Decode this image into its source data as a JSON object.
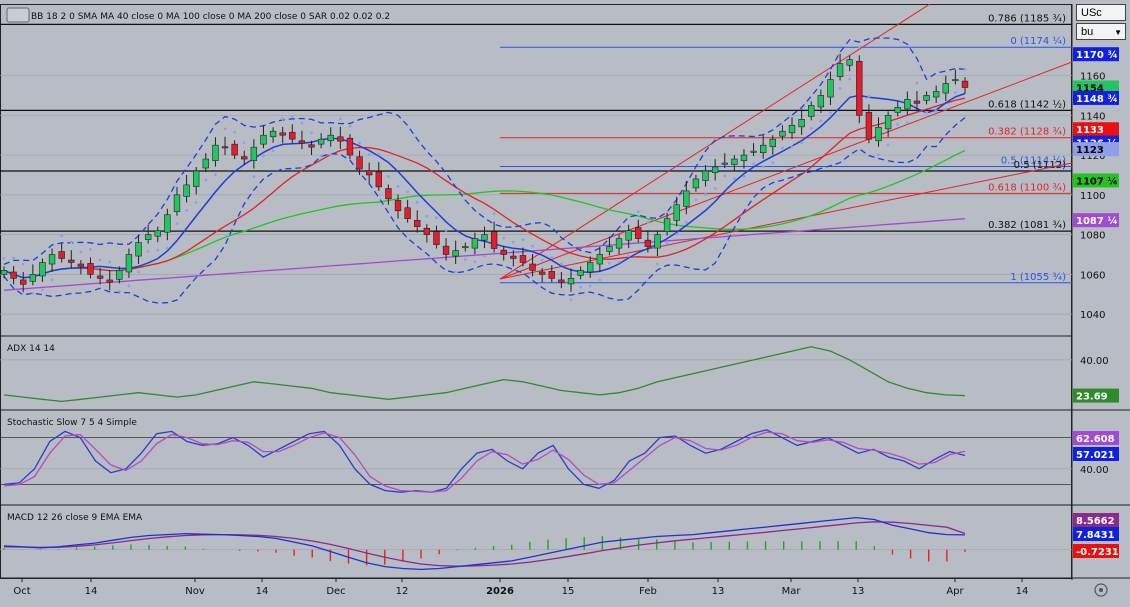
{
  "toolbar": {
    "indicators_label": "BB 18 2 0 SMA  MA 40 close 0  MA 100 close 0  MA 200 close 0  SAR 0.02 0.02 0.2",
    "symbol_value": "USc",
    "style_value": "bu"
  },
  "colors": {
    "background": "#b8bcc4",
    "up_candle": "#22c55e",
    "down_candle": "#e11d2f",
    "bollinger": "#1d3fd8",
    "sar_dots": "#8f9ee8",
    "ma40": "#e02424",
    "ma100": "#22c51e",
    "ma200": "#a14bd0",
    "adx": "#2e8b2e",
    "stoch_k": "#2b3fc4",
    "stoch_d": "#b24cc0",
    "macd_line": "#2230d0",
    "macd_signal": "#8a2a8a",
    "hist_pos": "#1fa81f",
    "hist_neg": "#e82020"
  },
  "chart_data": [
    {
      "type": "candlestick",
      "title": "",
      "x_labels": [
        "Oct",
        "14",
        "Nov",
        "14",
        "Dec",
        "12",
        "2026",
        "15",
        "Feb",
        "13",
        "Mar",
        "13",
        "Apr",
        "14"
      ],
      "y_ticks": [
        1040,
        1060,
        1080,
        1100,
        1120,
        1140,
        1160
      ],
      "ylim": [
        1030,
        1196
      ],
      "close_approx": [
        1062,
        1058,
        1055,
        1060,
        1066,
        1070,
        1068,
        1066,
        1064,
        1060,
        1058,
        1056,
        1062,
        1070,
        1076,
        1080,
        1082,
        1090,
        1100,
        1105,
        1112,
        1118,
        1125,
        1124,
        1120,
        1118,
        1124,
        1130,
        1132,
        1130,
        1128,
        1126,
        1124,
        1128,
        1130,
        1127,
        1120,
        1113,
        1110,
        1104,
        1098,
        1092,
        1088,
        1084,
        1080,
        1075,
        1070,
        1072,
        1074,
        1078,
        1080,
        1073,
        1070,
        1068,
        1066,
        1062,
        1060,
        1058,
        1056,
        1058,
        1062,
        1066,
        1070,
        1074,
        1078,
        1082,
        1078,
        1074,
        1080,
        1088,
        1095,
        1102,
        1108,
        1112,
        1114,
        1116,
        1118,
        1120,
        1122,
        1125,
        1128,
        1132,
        1135,
        1138,
        1145,
        1150,
        1158,
        1166,
        1168,
        1140,
        1128,
        1134,
        1140,
        1144,
        1148,
        1146,
        1150,
        1152,
        1156,
        1158,
        1154
      ],
      "fib_levels": [
        {
          "label": "0.786 (1185 ¾)",
          "value": 1185.75,
          "color": "#111111"
        },
        {
          "label": "0 (1174 ¼)",
          "value": 1174.25,
          "color": "#2b55e8"
        },
        {
          "label": "0.618 (1142 ½)",
          "value": 1142.5,
          "color": "#111111"
        },
        {
          "label": "0.382 (1128 ¾)",
          "value": 1128.75,
          "color": "#e02424"
        },
        {
          "label": "0.5 (1114 ¼)",
          "value": 1114.25,
          "color": "#2b55e8"
        },
        {
          "label": "0.5 (1112)",
          "value": 1112,
          "color": "#111111"
        },
        {
          "label": "0.618 (1100 ¾)",
          "value": 1100.75,
          "color": "#e02424"
        },
        {
          "label": "0.382 (1081 ¾)",
          "value": 1081.75,
          "color": "#111111"
        },
        {
          "label": "1 (1055 ¾)",
          "value": 1055.75,
          "color": "#2b55e8"
        }
      ],
      "price_tags": [
        {
          "text": "1170 ¾",
          "value": 1170.75,
          "bg": "#1020e0",
          "fg": "#ffffff"
        },
        {
          "text": "1154",
          "value": 1154,
          "bg": "#22c55e",
          "fg": "#000000"
        },
        {
          "text": "1148 ¾",
          "value": 1148.75,
          "bg": "#1020e0",
          "fg": "#ffffff"
        },
        {
          "text": "1133",
          "value": 1133,
          "bg": "#e81010",
          "fg": "#ffffff"
        },
        {
          "text": "1126 ¼",
          "value": 1126.25,
          "bg": "#1020e0",
          "fg": "#ffffff"
        },
        {
          "text": "1123",
          "value": 1123,
          "bg": "#8f9ee8",
          "fg": "#000000"
        },
        {
          "text": "1107 ¼",
          "value": 1107.25,
          "bg": "#22c51e",
          "fg": "#000000"
        },
        {
          "text": "1087 ¼",
          "value": 1087.25,
          "bg": "#a14bd0",
          "fg": "#ffffff"
        }
      ]
    },
    {
      "type": "line",
      "title": "ADX 14 14",
      "y_ticks": [
        40.0
      ],
      "ylim": [
        18,
        50
      ],
      "value_tag": "23.69",
      "series": [
        {
          "name": "ADX",
          "values": [
            24,
            23,
            22,
            21,
            22,
            23,
            24,
            25,
            24,
            23,
            24,
            26,
            28,
            30,
            29,
            28,
            27,
            25,
            24,
            23,
            22,
            23,
            24,
            25,
            27,
            29,
            31,
            30,
            28,
            26,
            25,
            24,
            25,
            27,
            30,
            32,
            34,
            36,
            38,
            40,
            42,
            44,
            46,
            44,
            40,
            35,
            30,
            27,
            25,
            24,
            23.69
          ]
        }
      ]
    },
    {
      "type": "line",
      "title": "Stochastic Slow 7 5 4 Simple",
      "y_ticks": [
        40.0
      ],
      "ylim": [
        0,
        100
      ],
      "value_tags": [
        "62.608",
        "57.021"
      ],
      "series": [
        {
          "name": "%K",
          "values": [
            20,
            22,
            40,
            75,
            88,
            80,
            50,
            35,
            40,
            60,
            85,
            88,
            75,
            70,
            72,
            80,
            70,
            55,
            65,
            75,
            85,
            88,
            70,
            40,
            20,
            12,
            10,
            12,
            10,
            15,
            40,
            60,
            65,
            50,
            40,
            60,
            70,
            40,
            20,
            15,
            25,
            50,
            60,
            80,
            82,
            70,
            60,
            65,
            75,
            85,
            90,
            80,
            70,
            75,
            80,
            70,
            60,
            65,
            55,
            50,
            40,
            52,
            62,
            57
          ]
        },
        {
          "name": "%D",
          "values": [
            18,
            20,
            30,
            60,
            82,
            84,
            65,
            45,
            38,
            50,
            72,
            84,
            80,
            72,
            71,
            76,
            74,
            62,
            62,
            70,
            80,
            86,
            80,
            58,
            30,
            18,
            12,
            11,
            10,
            12,
            28,
            50,
            62,
            58,
            46,
            52,
            64,
            52,
            32,
            20,
            22,
            38,
            54,
            70,
            80,
            76,
            66,
            64,
            70,
            80,
            87,
            85,
            76,
            74,
            77,
            74,
            66,
            64,
            60,
            54,
            46,
            48,
            58,
            62.6
          ]
        }
      ]
    },
    {
      "type": "line",
      "title": "MACD 12 26 close 9 EMA EMA",
      "value_tags": [
        "8.5662",
        "7.8431",
        "-0.7231"
      ],
      "series": [
        {
          "name": "MACD",
          "values": [
            2,
            1.5,
            1,
            1.5,
            2.5,
            3.5,
            5,
            6.5,
            7.5,
            8,
            8.5,
            8.2,
            8,
            7.5,
            7,
            6,
            4,
            2,
            -1,
            -4,
            -7,
            -9,
            -10,
            -10.5,
            -10,
            -9,
            -8,
            -7,
            -6,
            -4,
            -2,
            0,
            2,
            4,
            5,
            6,
            7,
            7.5,
            8,
            9,
            10,
            11,
            12,
            13,
            14,
            15,
            16,
            17,
            16,
            13,
            11,
            9,
            8,
            7.8431
          ]
        },
        {
          "name": "Signal",
          "values": [
            1.5,
            1.4,
            1.2,
            1.3,
            1.8,
            2.5,
            3.6,
            4.8,
            5.9,
            6.8,
            7.5,
            7.9,
            8,
            7.9,
            7.6,
            7,
            6,
            4.6,
            2.8,
            0.6,
            -1.8,
            -4,
            -6,
            -7.6,
            -8.5,
            -8.8,
            -8.6,
            -8.2,
            -7.6,
            -6.6,
            -5.3,
            -3.8,
            -2.2,
            -0.5,
            1,
            2.4,
            3.6,
            4.7,
            5.6,
            6.5,
            7.4,
            8.3,
            9.2,
            10.2,
            11.2,
            12.2,
            13.2,
            14.2,
            14.8,
            14.6,
            13.9,
            12.9,
            11.9,
            8.5662
          ]
        }
      ]
    }
  ]
}
